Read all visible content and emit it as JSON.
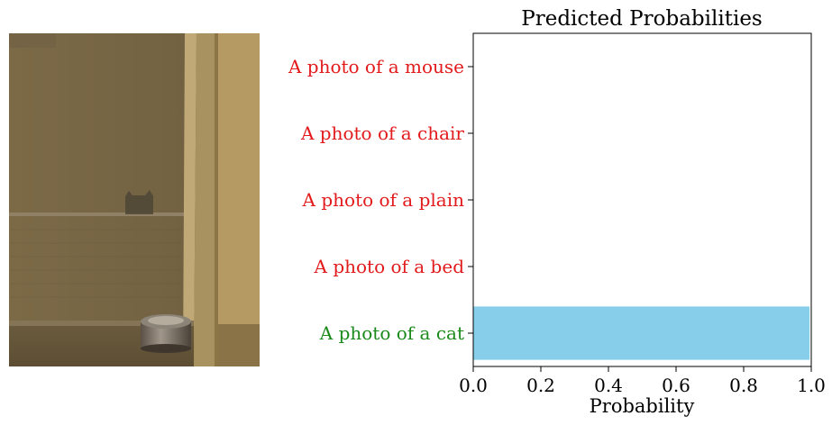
{
  "image_panel": {
    "icon": "photo-of-cat-behind-glass-door"
  },
  "chart_data": {
    "type": "bar",
    "orientation": "horizontal",
    "title": "Predicted Probabilities",
    "xlabel": "Probability",
    "ylabel": "",
    "xlim": [
      0.0,
      1.0
    ],
    "xticks": [
      "0.0",
      "0.2",
      "0.4",
      "0.6",
      "0.8",
      "1.0"
    ],
    "categories": [
      "A photo of a mouse",
      "A photo of a chair",
      "A photo of a plain",
      "A photo of a bed",
      "A photo of a cat"
    ],
    "values": [
      0.0,
      0.0,
      0.0,
      0.0,
      0.995
    ],
    "label_colors": [
      "#e31a1c",
      "#e31a1c",
      "#e31a1c",
      "#e31a1c",
      "#1a8a1a"
    ],
    "bar_color": "#87ceeb",
    "grid": false,
    "legend": "none"
  }
}
